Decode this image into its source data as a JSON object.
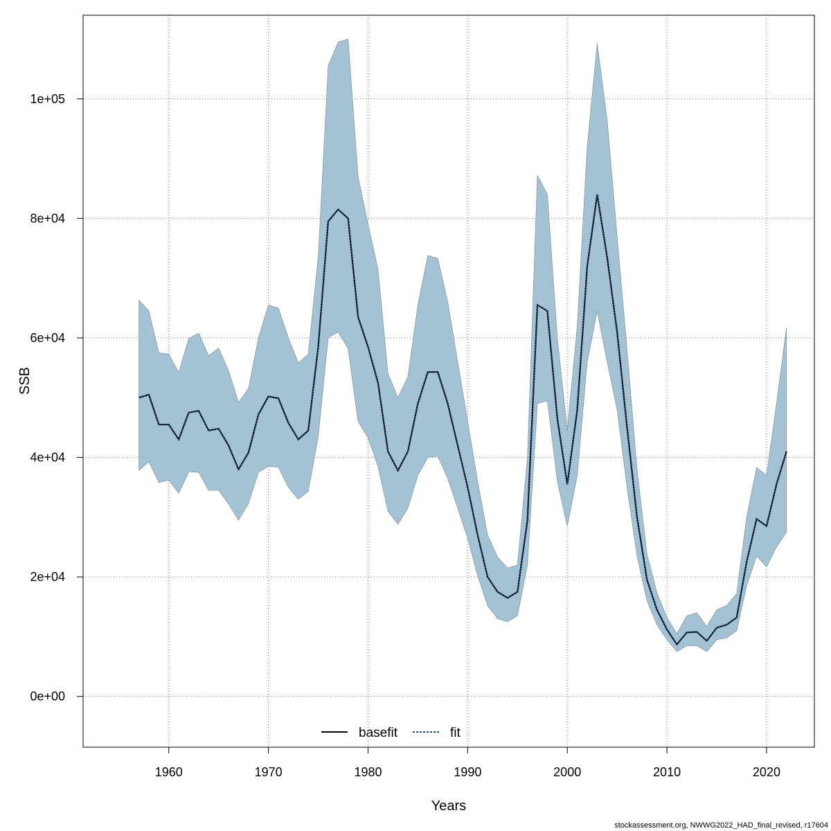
{
  "chart_data": {
    "type": "area",
    "xlabel": "Years",
    "ylabel": "SSB",
    "xlim": [
      1951.4,
      2024.8
    ],
    "ylim": [
      -8500,
      114000
    ],
    "x_ticks": [
      1960,
      1970,
      1980,
      1990,
      2000,
      2010,
      2020
    ],
    "y_ticks": [
      0,
      20000,
      40000,
      60000,
      80000,
      100000
    ],
    "y_tick_labels": [
      "0e+00",
      "2e+04",
      "4e+04",
      "6e+04",
      "8e+04",
      "1e+05"
    ],
    "grid": true,
    "legend": {
      "position": "bottom-center",
      "entries": [
        "basefit",
        "fit"
      ]
    },
    "colors": {
      "band": "#a3c3d4",
      "band_stroke": "#8a9aa4",
      "fit_line": "#1f4f7a",
      "basefit_line": "#000000",
      "grid": "#555555"
    },
    "x": [
      1957,
      1958,
      1959,
      1960,
      1961,
      1962,
      1963,
      1964,
      1965,
      1966,
      1967,
      1968,
      1969,
      1970,
      1971,
      1972,
      1973,
      1974,
      1975,
      1976,
      1977,
      1978,
      1979,
      1980,
      1981,
      1982,
      1983,
      1984,
      1985,
      1986,
      1987,
      1988,
      1989,
      1990,
      1991,
      1992,
      1993,
      1994,
      1995,
      1996,
      1997,
      1998,
      1999,
      2000,
      2001,
      2002,
      2003,
      2004,
      2005,
      2006,
      2007,
      2008,
      2009,
      2010,
      2011,
      2012,
      2013,
      2014,
      2015,
      2016,
      2017,
      2018,
      2019,
      2020,
      2021,
      2022
    ],
    "series": [
      {
        "name": "fit",
        "values": [
          50000,
          50500,
          45500,
          45500,
          43000,
          47500,
          47800,
          44500,
          44800,
          42000,
          38000,
          40800,
          47200,
          50200,
          49900,
          45800,
          43000,
          44500,
          58500,
          79500,
          81500,
          80000,
          63500,
          58500,
          52500,
          41000,
          37800,
          41000,
          49000,
          54300,
          54300,
          49000,
          42000,
          35000,
          27000,
          20000,
          17500,
          16500,
          17500,
          29500,
          65500,
          64500,
          46500,
          35500,
          48000,
          72000,
          84000,
          73500,
          61000,
          45000,
          30000,
          19500,
          14500,
          11200,
          8700,
          10700,
          10800,
          9300,
          11500,
          12000,
          13200,
          22500,
          29700,
          28500,
          35500,
          41000
        ]
      }
    ],
    "band": {
      "lower": [
        37800,
        39300,
        35800,
        36200,
        34000,
        37600,
        37500,
        34500,
        34500,
        32200,
        29500,
        32300,
        37500,
        38500,
        38400,
        35000,
        33000,
        34300,
        43500,
        60000,
        61000,
        58200,
        46000,
        43300,
        38500,
        31000,
        28800,
        31500,
        37000,
        40000,
        40200,
        36500,
        31500,
        26500,
        20200,
        15200,
        13000,
        12500,
        13500,
        22000,
        49000,
        49500,
        36000,
        28500,
        37000,
        56000,
        64500,
        56000,
        48000,
        35000,
        23500,
        16000,
        12000,
        9500,
        7500,
        8500,
        8500,
        7500,
        9500,
        9800,
        11000,
        18500,
        23500,
        21700,
        25000,
        27500
      ],
      "upper": [
        66300,
        64500,
        57500,
        57300,
        54200,
        59900,
        60800,
        57000,
        58300,
        54500,
        49200,
        51500,
        60000,
        65500,
        65000,
        60000,
        55800,
        57300,
        73500,
        105500,
        109500,
        110000,
        87000,
        79000,
        71500,
        54000,
        50000,
        53500,
        65500,
        73800,
        73300,
        66000,
        56000,
        46000,
        36000,
        27000,
        23300,
        21500,
        22000,
        40000,
        87200,
        84000,
        60000,
        44500,
        62000,
        92000,
        109300,
        96500,
        77000,
        58000,
        38000,
        23800,
        17300,
        13200,
        10500,
        13500,
        14000,
        11700,
        14500,
        15200,
        17200,
        30000,
        38300,
        37000,
        49000,
        61700
      ]
    }
  },
  "footer_text": "stockassessment.org, NWWG2022_HAD_final_revised, r17604"
}
